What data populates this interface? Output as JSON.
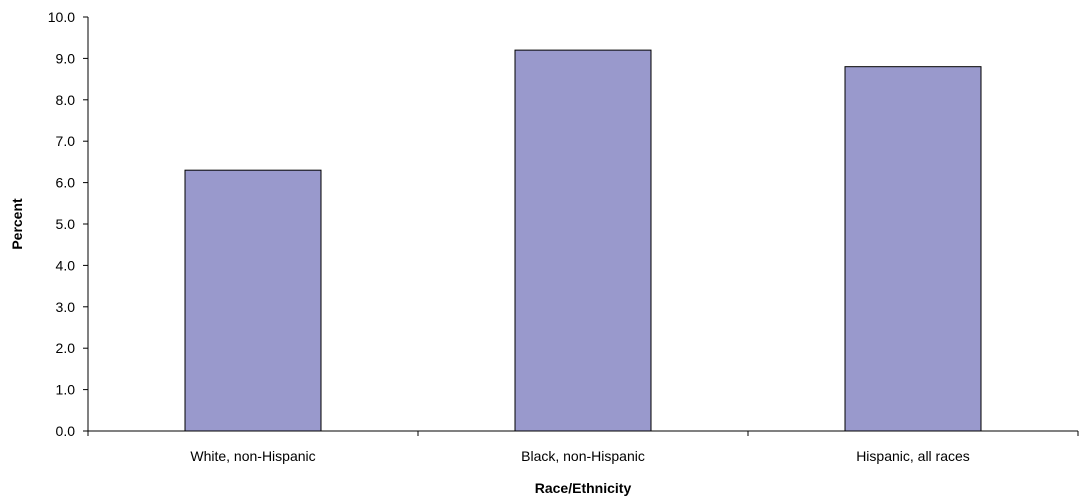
{
  "chart_data": {
    "type": "bar",
    "title": "",
    "xlabel": "Race/Ethnicity",
    "ylabel": "Percent",
    "categories": [
      "White, non-Hispanic",
      "Black, non-Hispanic",
      "Hispanic, all races"
    ],
    "values": [
      6.3,
      9.2,
      8.8
    ],
    "ylim": [
      0,
      10
    ],
    "yticks": [
      "0.0",
      "1.0",
      "2.0",
      "3.0",
      "4.0",
      "5.0",
      "6.0",
      "7.0",
      "8.0",
      "9.0",
      "10.0"
    ],
    "grid": false,
    "legend": "none",
    "bar_color": "#9999cc",
    "bar_edge_color": "#000000"
  }
}
